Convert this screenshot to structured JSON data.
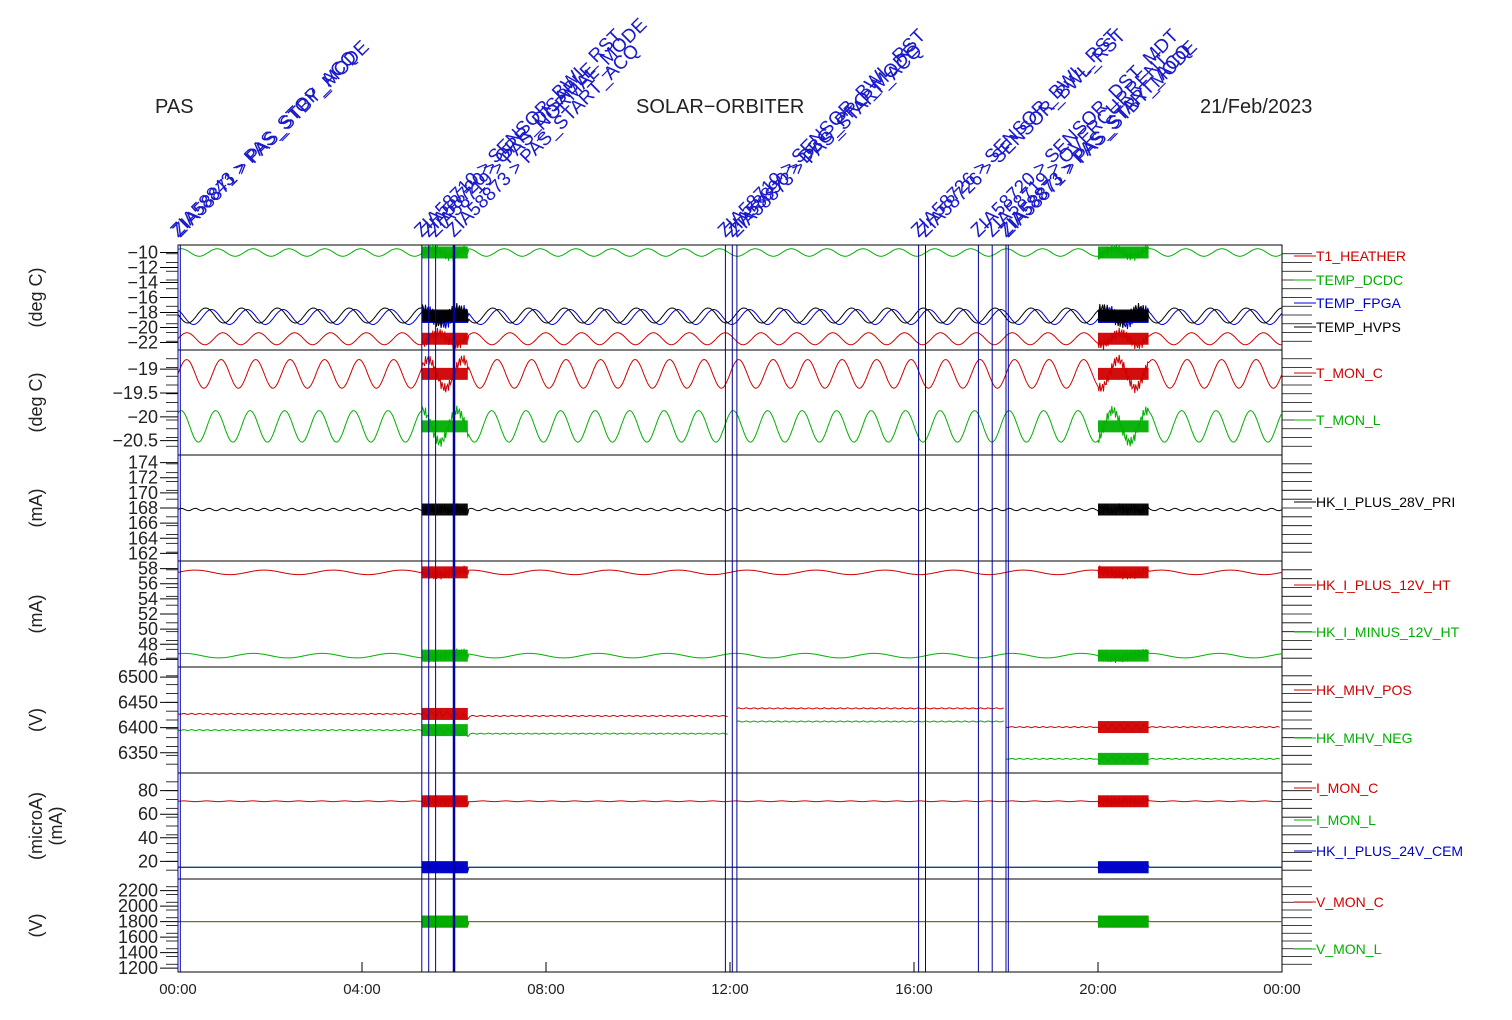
{
  "header": {
    "left": "PAS",
    "center": "SOLAR−ORBITER",
    "right": "21/Feb/2023"
  },
  "events": [
    {
      "time": 0.0,
      "label": "ZIA58843 > PAS_STOP_ACQ"
    },
    {
      "time": 0.05,
      "label": "ZIA58871 > PAS_STBY_MODE"
    },
    {
      "time": 5.3,
      "label": "ZIA58710 > SENSOR_BWL_RST"
    },
    {
      "time": 5.45,
      "label": "ZIA58720 > ORR_DISABLE"
    },
    {
      "time": 5.6,
      "label": "ZIA58719 > PAS_NORMAL_MODE"
    },
    {
      "time": 6.0,
      "label": "ZIA58873 > PAS_START_ACQ"
    },
    {
      "time": 11.9,
      "label": "ZIA58710 > SENSOR_BWL_RST"
    },
    {
      "time": 12.05,
      "label": "ZIA58890 > DBG_PRO_MODE"
    },
    {
      "time": 12.15,
      "label": "ZIA58873 > PAS_START_ACQ"
    },
    {
      "time": 16.1,
      "label": "ZIA58726 > SENSOR_BWL_RST"
    },
    {
      "time": 16.25,
      "label": "ZIA58726 > SENSOR_BWL_RST"
    },
    {
      "time": 17.4,
      "label": "ZIA58720 > SENSOR_DST_MDT"
    },
    {
      "time": 17.7,
      "label": "ZIA58719 > OVERCURRENT"
    },
    {
      "time": 18.0,
      "label": "ZIA58873 > PAS_START_ACQ"
    },
    {
      "time": 18.05,
      "label": "ZIA58871 > PAS_STBY_MODE"
    }
  ],
  "x_ticks": [
    "00:00",
    "04:00",
    "08:00",
    "12:00",
    "16:00",
    "20:00",
    "00:00"
  ],
  "chart_data": [
    {
      "type": "line",
      "ylabel": "(deg C)",
      "ylim": [
        -23,
        -9
      ],
      "yticks": [
        -10,
        -12,
        -14,
        -16,
        -18,
        -20,
        -22
      ],
      "series": [
        {
          "name": "T1_HEATHER",
          "color": "#d00000",
          "base": -21.5,
          "amp": 0.8,
          "period": 0.78
        },
        {
          "name": "TEMP_DCDC",
          "color": "#00b000",
          "base": -10.0,
          "amp": 0.5,
          "period": 0.78
        },
        {
          "name": "TEMP_FPGA",
          "color": "#0000cc",
          "base": -18.6,
          "amp": 1.0,
          "period": 0.78
        },
        {
          "name": "TEMP_HVPS",
          "color": "#000000",
          "base": -18.4,
          "amp": 1.0,
          "period": 0.78
        }
      ]
    },
    {
      "type": "line",
      "ylabel": "(deg C)",
      "ylim": [
        -20.8,
        -18.6
      ],
      "yticks": [
        -19.0,
        -19.5,
        -20.0,
        -20.5
      ],
      "series": [
        {
          "name": "T_MON_C",
          "color": "#d00000",
          "base": -19.1,
          "amp": 0.3,
          "period": 0.75
        },
        {
          "name": "T_MON_L",
          "color": "#00b000",
          "base": -20.2,
          "amp": 0.33,
          "period": 0.75
        }
      ]
    },
    {
      "type": "line",
      "ylabel": "(mA)",
      "ylim": [
        161,
        175
      ],
      "yticks": [
        162,
        164,
        166,
        168,
        170,
        172,
        174
      ],
      "series": [
        {
          "name": "HK_I_PLUS_28V_PRI",
          "color": "#000000",
          "base": 167.8,
          "amp": 0.15,
          "period": 0.3
        }
      ]
    },
    {
      "type": "line",
      "ylabel": "(mA)",
      "ylim": [
        45,
        59
      ],
      "yticks": [
        46,
        48,
        50,
        52,
        54,
        56,
        58
      ],
      "series": [
        {
          "name": "HK_I_PLUS_12V_HT",
          "color": "#d00000",
          "base": 57.5,
          "amp": 0.3,
          "period": 1.5
        },
        {
          "name": "HK_I_MINUS_12V_HT",
          "color": "#00b000",
          "base": 46.5,
          "amp": 0.3,
          "period": 1.5
        }
      ]
    },
    {
      "type": "line",
      "ylabel": "(V)",
      "ylim": [
        6310,
        6520
      ],
      "yticks": [
        6350,
        6400,
        6450,
        6500
      ],
      "series": [
        {
          "name": "HK_MHV_POS",
          "color": "#d00000",
          "segments": [
            [
              0,
              6.0,
              6427
            ],
            [
              6.0,
              12.0,
              6423
            ],
            [
              12.15,
              18.0,
              6438
            ],
            [
              18.0,
              24.0,
              6401
            ]
          ]
        },
        {
          "name": "HK_MHV_NEG",
          "color": "#00b000",
          "segments": [
            [
              0,
              6.0,
              6395
            ],
            [
              6.0,
              12.0,
              6388
            ],
            [
              12.15,
              18.0,
              6412
            ],
            [
              18.0,
              24.0,
              6338
            ]
          ]
        }
      ]
    },
    {
      "type": "line",
      "ylabel": "(microA)",
      "ylabel2": "(mA)",
      "ylim": [
        5,
        95
      ],
      "yticks": [
        20,
        40,
        60,
        80
      ],
      "series": [
        {
          "name": "I_MON_C",
          "color": "#d00000",
          "base": 71,
          "amp": 0.3,
          "period": 0.5
        },
        {
          "name": "I_MON_L",
          "color": "#00b000",
          "base": 15,
          "amp": 0.0,
          "period": 1.0
        },
        {
          "name": "HK_I_PLUS_24V_CEM",
          "color": "#0000cc",
          "base": 15,
          "amp": 0.0,
          "period": 1.0
        }
      ]
    },
    {
      "type": "line",
      "ylabel": "(V)",
      "ylim": [
        1150,
        2350
      ],
      "yticks": [
        1200,
        1400,
        1600,
        1800,
        2000,
        2200
      ],
      "series": [
        {
          "name": "V_MON_C",
          "color": "#d00000",
          "base": 1800,
          "amp": 0,
          "period": 1.0
        },
        {
          "name": "V_MON_L",
          "color": "#00b000",
          "base": 1800,
          "amp": 0,
          "period": 1.0
        }
      ]
    }
  ],
  "bursts": [
    [
      5.3,
      6.3
    ],
    [
      20.0,
      21.1
    ]
  ]
}
